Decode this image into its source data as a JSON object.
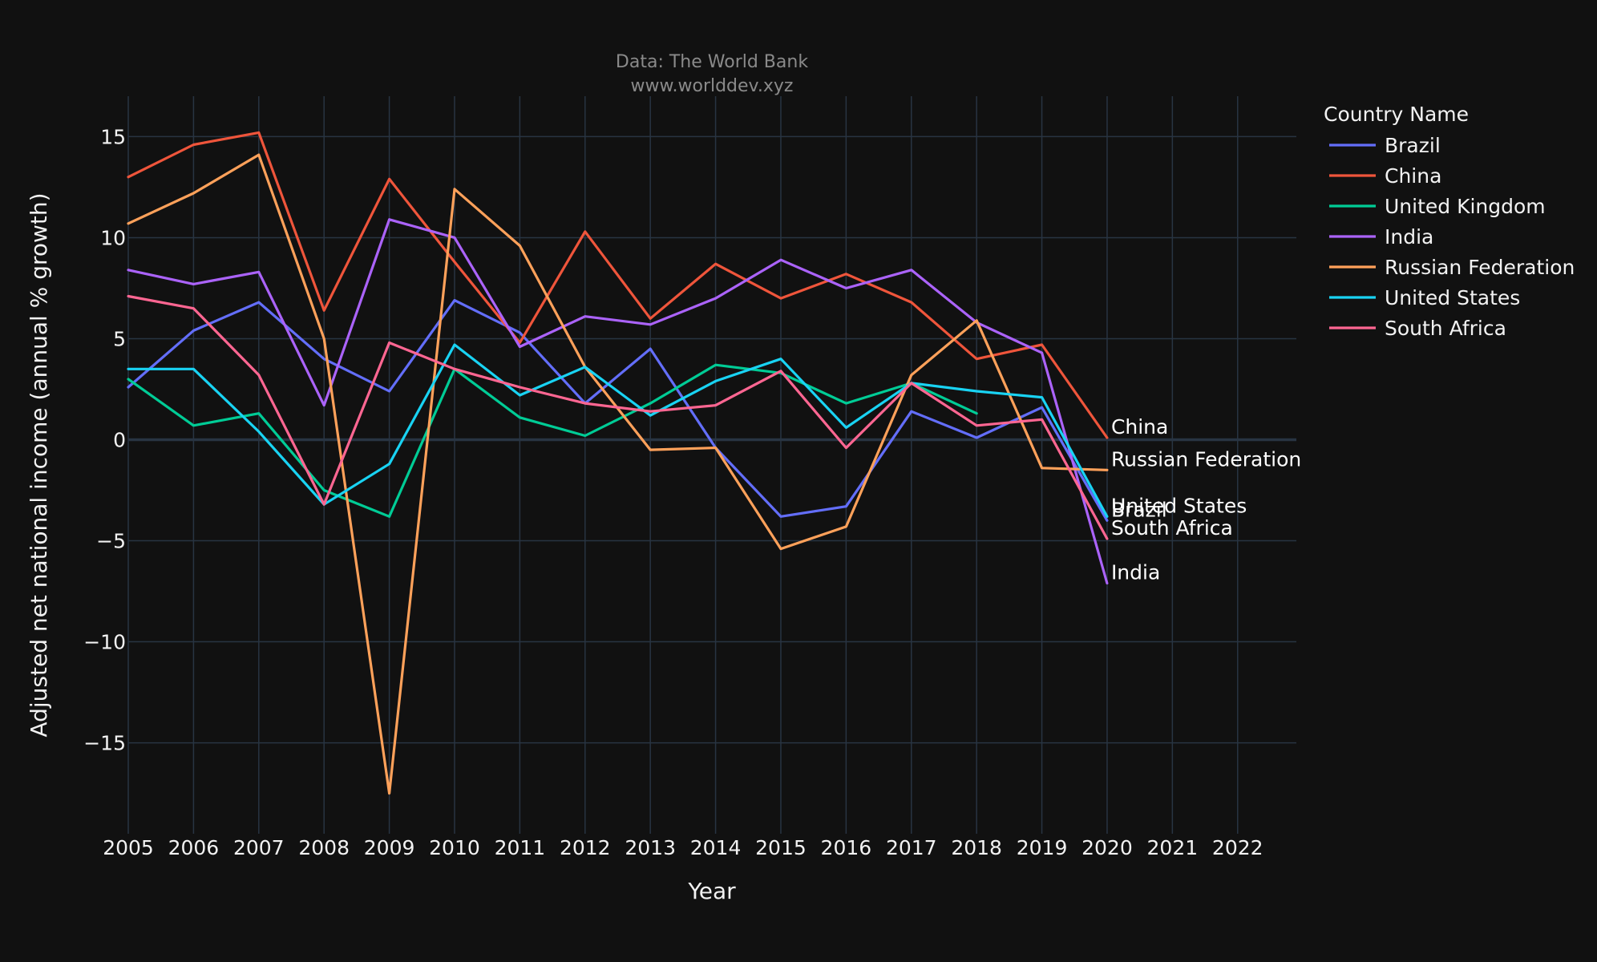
{
  "chart_data": {
    "type": "line",
    "title": "",
    "subtitle_lines": [
      "Data: The World Bank",
      "www.worlddev.xyz"
    ],
    "xlabel": "Year",
    "ylabel": "Adjusted net national income (annual % growth)",
    "x": [
      2005,
      2006,
      2007,
      2008,
      2009,
      2010,
      2011,
      2012,
      2013,
      2014,
      2015,
      2016,
      2017,
      2018,
      2019,
      2020
    ],
    "x_ticks": [
      "2005",
      "2006",
      "2007",
      "2008",
      "2009",
      "2010",
      "2011",
      "2012",
      "2013",
      "2014",
      "2015",
      "2016",
      "2017",
      "2018",
      "2019",
      "2020",
      "2021",
      "2022"
    ],
    "xlim": [
      2005,
      2022.9
    ],
    "y_ticks": [
      15,
      10,
      5,
      0,
      -5,
      -10,
      -15
    ],
    "y_tick_labels": [
      "15",
      "10",
      "5",
      "0",
      "−5",
      "−10",
      "−15"
    ],
    "ylim": [
      -19.5,
      17
    ],
    "grid": true,
    "legend_title": "Country Name",
    "legend_position": "top-right, outside plot",
    "series": [
      {
        "name": "Brazil",
        "color": "#636efa",
        "end_label": "Brazil",
        "values": [
          2.6,
          5.4,
          6.8,
          4.0,
          2.4,
          6.9,
          5.3,
          1.8,
          4.5,
          -0.4,
          -3.8,
          -3.3,
          1.4,
          0.1,
          1.6,
          -4.0
        ]
      },
      {
        "name": "China",
        "color": "#ef553b",
        "end_label": "China",
        "values": [
          13.0,
          14.6,
          15.2,
          6.4,
          12.9,
          8.8,
          4.8,
          10.3,
          6.0,
          8.7,
          7.0,
          8.2,
          6.8,
          4.0,
          4.7,
          0.1
        ]
      },
      {
        "name": "United Kingdom",
        "color": "#00cc96",
        "end_label": "",
        "values": [
          3.0,
          0.7,
          1.3,
          -2.5,
          -3.8,
          3.5,
          1.1,
          0.2,
          1.8,
          3.7,
          3.3,
          1.8,
          2.8,
          1.3,
          null,
          null
        ]
      },
      {
        "name": "India",
        "color": "#ab63fa",
        "end_label": "India",
        "values": [
          8.4,
          7.7,
          8.3,
          1.7,
          10.9,
          10.0,
          4.6,
          6.1,
          5.7,
          7.0,
          8.9,
          7.5,
          8.4,
          5.8,
          4.3,
          -7.1
        ]
      },
      {
        "name": "Russian Federation",
        "color": "#ffa15a",
        "end_label": "Russian Federation",
        "values": [
          10.7,
          12.2,
          14.1,
          5.0,
          -17.5,
          12.4,
          9.6,
          3.6,
          -0.5,
          -0.4,
          -5.4,
          -4.3,
          3.2,
          5.9,
          -1.4,
          -1.5
        ]
      },
      {
        "name": "United States",
        "color": "#19d3f3",
        "end_label": "United States",
        "values": [
          3.5,
          3.5,
          0.4,
          -3.2,
          -1.2,
          4.7,
          2.2,
          3.6,
          1.2,
          2.9,
          4.0,
          0.6,
          2.8,
          2.4,
          2.1,
          -3.8
        ]
      },
      {
        "name": "South Africa",
        "color": "#ff6692",
        "end_label": "South Africa",
        "values": [
          7.1,
          6.5,
          3.2,
          -3.2,
          4.8,
          3.5,
          2.6,
          1.8,
          1.4,
          1.7,
          3.4,
          -0.4,
          2.8,
          0.7,
          1.0,
          -4.9
        ]
      }
    ]
  }
}
